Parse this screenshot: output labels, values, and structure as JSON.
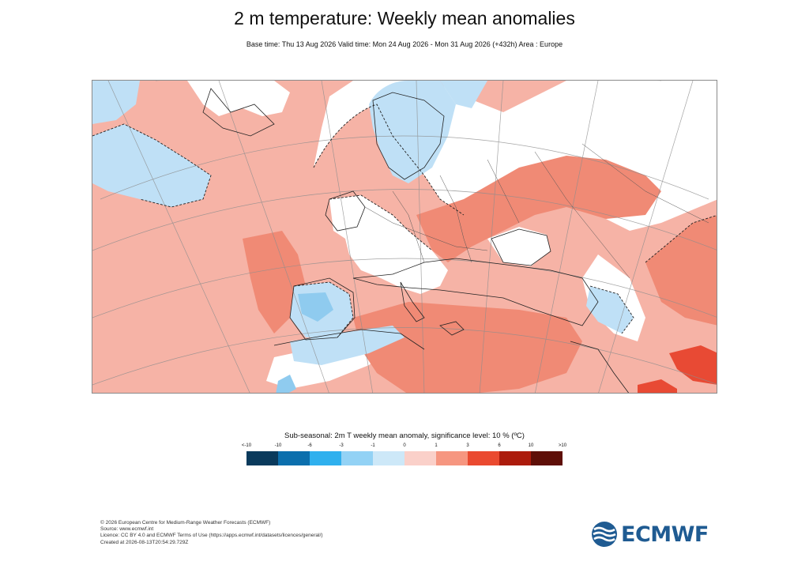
{
  "header": {
    "title": "2 m temperature: Weekly mean anomalies",
    "subtitle": "Base time: Thu 13 Aug 2026 Valid time: Mon 24 Aug 2026 - Mon 31 Aug 2026 (+432h) Area : Europe"
  },
  "map": {
    "region": "Europe",
    "colors": {
      "sea_warm": "#f6b3a6",
      "warm_strong": "#f08a75",
      "neutral": "#ffffff",
      "cool": "#bfe0f6",
      "cool_strong": "#8fcbef",
      "hot": "#e84a34"
    }
  },
  "legend": {
    "title": "Sub-seasonal: 2m T weekly mean anomaly, significance level: 10 % (ºC)",
    "ticks": [
      "<-10",
      "-10",
      "-6",
      "-3",
      "-1",
      "0",
      "1",
      "3",
      "6",
      "10",
      ">10"
    ],
    "colors": [
      "#0a3a5c",
      "#0c6fad",
      "#2fb0ee",
      "#93d2f5",
      "#cde8f8",
      "#fad0c9",
      "#f69680",
      "#ea4a30",
      "#ac1b0c",
      "#5e0f08"
    ]
  },
  "footer": {
    "lines": [
      "© 2026 European Centre for Medium-Range Weather Forecasts (ECMWF)",
      "Source: www.ecmwf.int",
      "Licence: CC BY 4.0 and ECMWF Terms of Use (https://apps.ecmwf.int/datasets/licences/general/)",
      "Created at 2026-08-13T20:54:29.729Z"
    ]
  },
  "logo": {
    "text": "ECMWF",
    "color": "#1f5b92"
  }
}
